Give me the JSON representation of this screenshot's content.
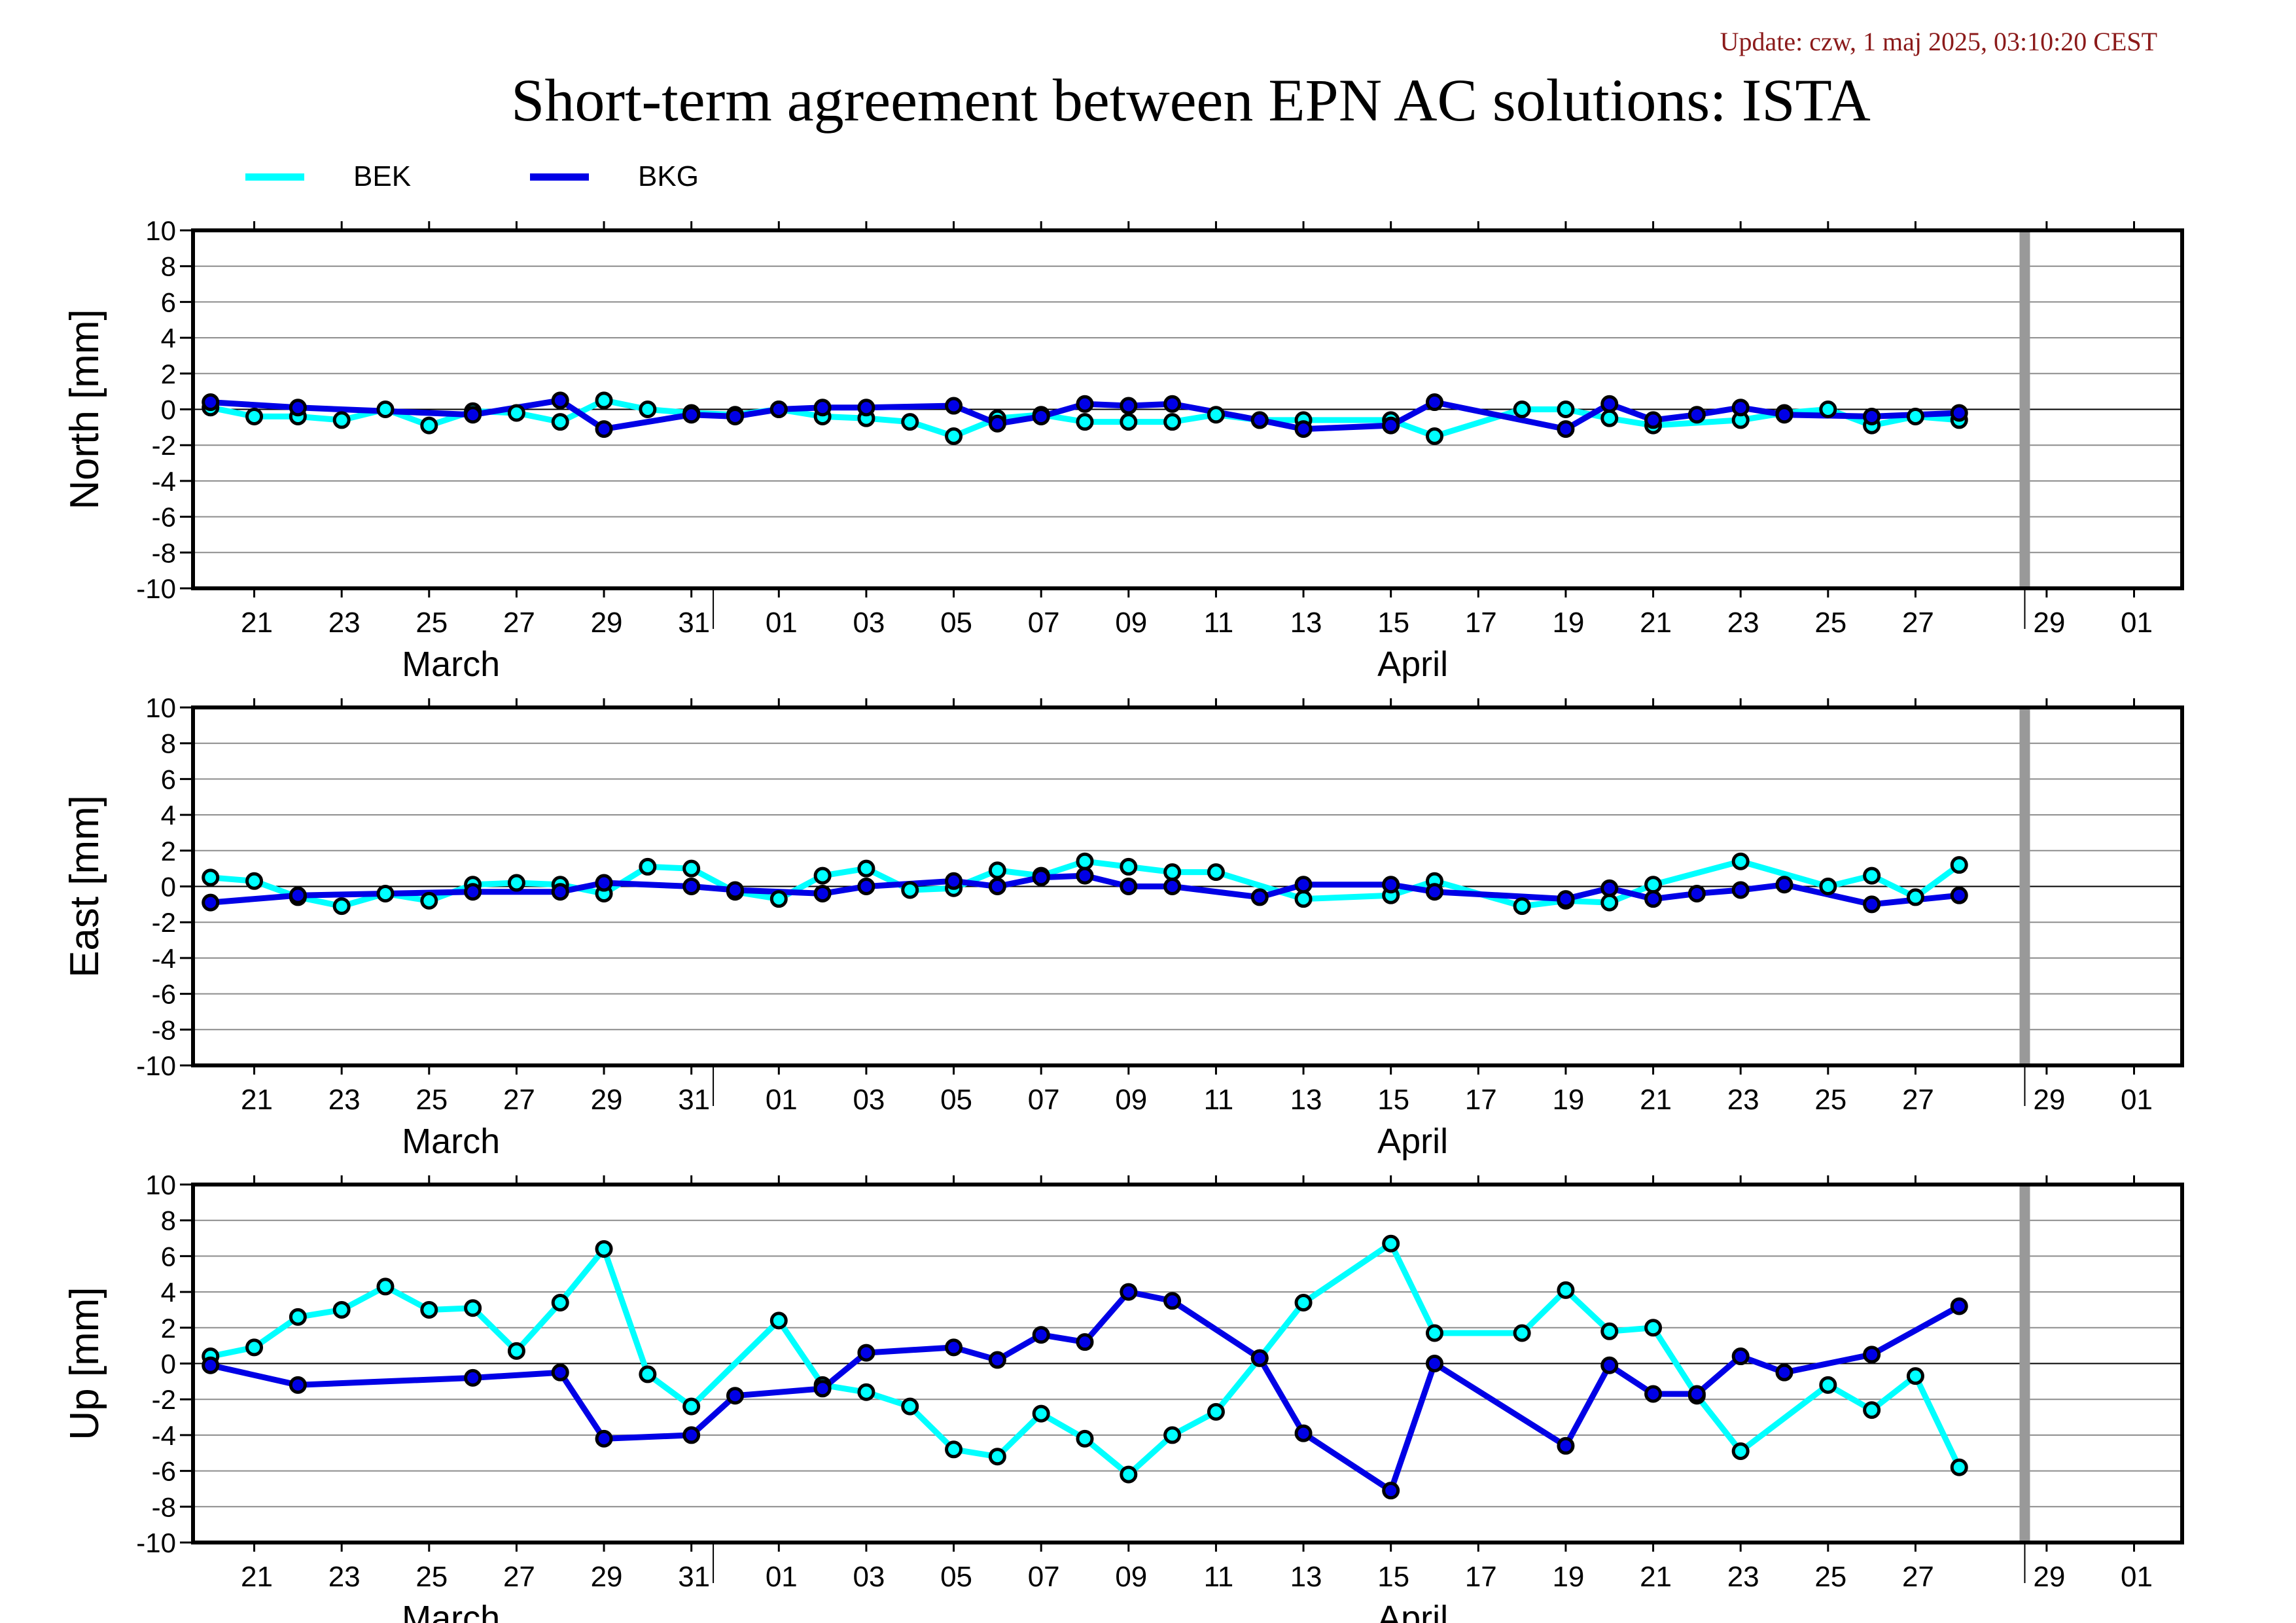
{
  "header": {
    "update": "Update: czw, 1 maj 2025, 03:10:20 CEST",
    "title": "Short-term agreement between EPN AC solutions: ISTA"
  },
  "legend": [
    {
      "name": "BEK",
      "color": "#00ffff"
    },
    {
      "name": "BKG",
      "color": "#0000e6"
    }
  ],
  "chart_data": [
    {
      "type": "line",
      "ylabel": "North [mm]",
      "ylim": [
        -10,
        10
      ],
      "yticks": [
        10,
        8,
        6,
        4,
        2,
        0,
        -2,
        -4,
        -6,
        -8,
        -10
      ],
      "xlim": [
        "2025-03-20",
        "2025-05-03"
      ],
      "xtick_labels": [
        "21",
        "23",
        "25",
        "27",
        "29",
        "31",
        "01",
        "03",
        "05",
        "07",
        "09",
        "11",
        "13",
        "15",
        "17",
        "19",
        "21",
        "23",
        "25",
        "27",
        "29",
        "01",
        "03"
      ],
      "month_labels": [
        "March",
        "April"
      ],
      "grid": true,
      "marker_line": "2025-04-30",
      "series": [
        {
          "name": "BEK",
          "color": "#00ffff",
          "x": [
            "2025-03-20",
            "2025-03-21",
            "2025-03-22",
            "2025-03-23",
            "2025-03-24",
            "2025-03-25",
            "2025-03-26",
            "2025-03-27",
            "2025-03-28",
            "2025-03-29",
            "2025-03-30",
            "2025-03-31",
            "2025-04-01",
            "2025-04-02",
            "2025-04-03",
            "2025-04-04",
            "2025-04-05",
            "2025-04-06",
            "2025-04-07",
            "2025-04-08",
            "2025-04-09",
            "2025-04-10",
            "2025-04-11",
            "2025-04-12",
            "2025-04-13",
            "2025-04-14",
            "2025-04-16",
            "2025-04-17",
            "2025-04-19",
            "2025-04-20",
            "2025-04-21",
            "2025-04-22",
            "2025-04-24",
            "2025-04-25",
            "2025-04-26",
            "2025-04-27",
            "2025-04-28",
            "2025-04-29"
          ],
          "y": [
            0.1,
            -0.4,
            -0.4,
            -0.6,
            0.0,
            -0.9,
            -0.1,
            -0.2,
            -0.7,
            0.5,
            0.0,
            -0.2,
            -0.3,
            0.0,
            -0.4,
            -0.5,
            -0.7,
            -1.5,
            -0.5,
            -0.3,
            -0.7,
            -0.7,
            -0.7,
            -0.3,
            -0.6,
            -0.6,
            -0.6,
            -1.5,
            0.0,
            0.0,
            -0.5,
            -0.9,
            -0.6,
            -0.2,
            0.0,
            -0.9,
            -0.4,
            -0.6
          ]
        },
        {
          "name": "BKG",
          "color": "#0000e6",
          "x": [
            "2025-03-20",
            "2025-03-22",
            "2025-03-26",
            "2025-03-28",
            "2025-03-29",
            "2025-03-31",
            "2025-04-01",
            "2025-04-02",
            "2025-04-03",
            "2025-04-04",
            "2025-04-06",
            "2025-04-07",
            "2025-04-08",
            "2025-04-09",
            "2025-04-10",
            "2025-04-11",
            "2025-04-13",
            "2025-04-14",
            "2025-04-16",
            "2025-04-17",
            "2025-04-20",
            "2025-04-21",
            "2025-04-22",
            "2025-04-23",
            "2025-04-24",
            "2025-04-25",
            "2025-04-27",
            "2025-04-29"
          ],
          "y": [
            0.4,
            0.1,
            -0.3,
            0.5,
            -1.1,
            -0.3,
            -0.4,
            0.0,
            0.1,
            0.1,
            0.2,
            -0.8,
            -0.4,
            0.3,
            0.2,
            0.3,
            -0.6,
            -1.1,
            -0.9,
            0.4,
            -1.1,
            0.3,
            -0.6,
            -0.3,
            0.1,
            -0.3,
            -0.4,
            -0.2
          ]
        }
      ]
    },
    {
      "type": "line",
      "ylabel": "East [mm]",
      "ylim": [
        -10,
        10
      ],
      "yticks": [
        10,
        8,
        6,
        4,
        2,
        0,
        -2,
        -4,
        -6,
        -8,
        -10
      ],
      "xlim": [
        "2025-03-20",
        "2025-05-03"
      ],
      "xtick_labels": [
        "21",
        "23",
        "25",
        "27",
        "29",
        "31",
        "01",
        "03",
        "05",
        "07",
        "09",
        "11",
        "13",
        "15",
        "17",
        "19",
        "21",
        "23",
        "25",
        "27",
        "29",
        "01",
        "03"
      ],
      "month_labels": [
        "March",
        "April"
      ],
      "grid": true,
      "marker_line": "2025-04-30",
      "series": [
        {
          "name": "BEK",
          "color": "#00ffff",
          "x": [
            "2025-03-20",
            "2025-03-21",
            "2025-03-22",
            "2025-03-23",
            "2025-03-24",
            "2025-03-25",
            "2025-03-26",
            "2025-03-27",
            "2025-03-28",
            "2025-03-29",
            "2025-03-30",
            "2025-03-31",
            "2025-04-01",
            "2025-04-02",
            "2025-04-03",
            "2025-04-04",
            "2025-04-05",
            "2025-04-06",
            "2025-04-07",
            "2025-04-08",
            "2025-04-09",
            "2025-04-10",
            "2025-04-11",
            "2025-04-12",
            "2025-04-14",
            "2025-04-16",
            "2025-04-17",
            "2025-04-19",
            "2025-04-20",
            "2025-04-21",
            "2025-04-22",
            "2025-04-24",
            "2025-04-26",
            "2025-04-27",
            "2025-04-28",
            "2025-04-29"
          ],
          "y": [
            0.5,
            0.3,
            -0.6,
            -1.1,
            -0.4,
            -0.8,
            0.1,
            0.2,
            0.1,
            -0.4,
            1.1,
            1.0,
            -0.3,
            -0.7,
            0.6,
            1.0,
            -0.2,
            -0.1,
            0.9,
            0.6,
            1.4,
            1.1,
            0.8,
            0.8,
            -0.7,
            -0.5,
            0.3,
            -1.1,
            -0.8,
            -0.9,
            0.1,
            1.4,
            0.0,
            0.6,
            -0.6,
            1.2
          ]
        },
        {
          "name": "BKG",
          "color": "#0000e6",
          "x": [
            "2025-03-20",
            "2025-03-22",
            "2025-03-26",
            "2025-03-28",
            "2025-03-29",
            "2025-03-31",
            "2025-04-01",
            "2025-04-03",
            "2025-04-04",
            "2025-04-06",
            "2025-04-07",
            "2025-04-08",
            "2025-04-09",
            "2025-04-10",
            "2025-04-11",
            "2025-04-13",
            "2025-04-14",
            "2025-04-16",
            "2025-04-17",
            "2025-04-20",
            "2025-04-21",
            "2025-04-22",
            "2025-04-23",
            "2025-04-24",
            "2025-04-25",
            "2025-04-27",
            "2025-04-29"
          ],
          "y": [
            -0.9,
            -0.5,
            -0.3,
            -0.3,
            0.2,
            0.0,
            -0.2,
            -0.4,
            0.0,
            0.3,
            0.0,
            0.5,
            0.6,
            0.0,
            0.0,
            -0.6,
            0.1,
            0.1,
            -0.3,
            -0.7,
            -0.1,
            -0.7,
            -0.4,
            -0.2,
            0.1,
            -1.0,
            -0.5
          ]
        }
      ]
    },
    {
      "type": "line",
      "ylabel": "Up [mm]",
      "ylim": [
        -10,
        10
      ],
      "yticks": [
        10,
        8,
        6,
        4,
        2,
        0,
        -2,
        -4,
        -6,
        -8,
        -10
      ],
      "xlim": [
        "2025-03-20",
        "2025-05-03"
      ],
      "xtick_labels": [
        "21",
        "23",
        "25",
        "27",
        "29",
        "31",
        "01",
        "03",
        "05",
        "07",
        "09",
        "11",
        "13",
        "15",
        "17",
        "19",
        "21",
        "23",
        "25",
        "27",
        "29",
        "01",
        "03"
      ],
      "month_labels": [
        "March",
        "April"
      ],
      "grid": true,
      "marker_line": "2025-04-30",
      "series": [
        {
          "name": "BEK",
          "color": "#00ffff",
          "x": [
            "2025-03-20",
            "2025-03-21",
            "2025-03-22",
            "2025-03-23",
            "2025-03-24",
            "2025-03-25",
            "2025-03-26",
            "2025-03-27",
            "2025-03-28",
            "2025-03-29",
            "2025-03-30",
            "2025-03-31",
            "2025-04-02",
            "2025-04-03",
            "2025-04-04",
            "2025-04-05",
            "2025-04-06",
            "2025-04-07",
            "2025-04-08",
            "2025-04-09",
            "2025-04-10",
            "2025-04-11",
            "2025-04-12",
            "2025-04-13",
            "2025-04-14",
            "2025-04-16",
            "2025-04-17",
            "2025-04-19",
            "2025-04-20",
            "2025-04-21",
            "2025-04-22",
            "2025-04-23",
            "2025-04-24",
            "2025-04-26",
            "2025-04-27",
            "2025-04-28",
            "2025-04-29"
          ],
          "y": [
            0.4,
            0.9,
            2.6,
            3.0,
            4.3,
            3.0,
            3.1,
            0.7,
            3.4,
            6.4,
            -0.6,
            -2.4,
            2.4,
            -1.2,
            -1.6,
            -2.4,
            -4.8,
            -5.2,
            -2.8,
            -4.2,
            -6.2,
            -4.0,
            -2.7,
            0.3,
            3.4,
            6.7,
            1.7,
            1.7,
            4.1,
            1.8,
            2.0,
            -1.8,
            -4.9,
            -1.2,
            -2.6,
            -0.7,
            -5.8
          ]
        },
        {
          "name": "BKG",
          "color": "#0000e6",
          "x": [
            "2025-03-20",
            "2025-03-22",
            "2025-03-26",
            "2025-03-28",
            "2025-03-29",
            "2025-03-31",
            "2025-04-01",
            "2025-04-03",
            "2025-04-04",
            "2025-04-06",
            "2025-04-07",
            "2025-04-08",
            "2025-04-09",
            "2025-04-10",
            "2025-04-11",
            "2025-04-13",
            "2025-04-14",
            "2025-04-16",
            "2025-04-17",
            "2025-04-20",
            "2025-04-21",
            "2025-04-22",
            "2025-04-23",
            "2025-04-24",
            "2025-04-25",
            "2025-04-27",
            "2025-04-29"
          ],
          "y": [
            -0.1,
            -1.2,
            -0.8,
            -0.5,
            -4.2,
            -4.0,
            -1.8,
            -1.4,
            0.6,
            0.9,
            0.2,
            1.6,
            1.2,
            4.0,
            3.5,
            0.3,
            -3.9,
            -7.1,
            0.0,
            -4.6,
            -0.1,
            -1.7,
            -1.7,
            0.4,
            -0.5,
            0.5,
            3.2
          ]
        }
      ]
    }
  ]
}
